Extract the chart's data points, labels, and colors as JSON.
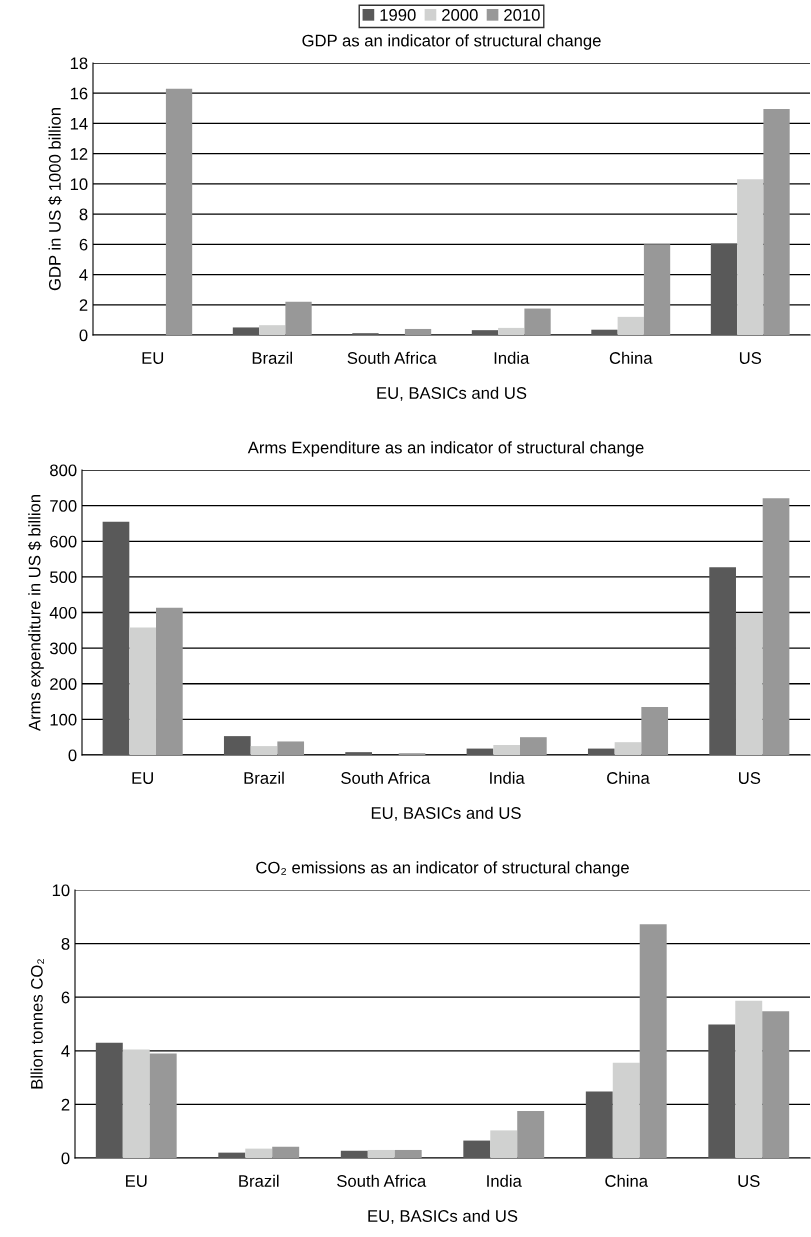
{
  "chart_data": [
    {
      "type": "bar",
      "title": "GDP as an indicator of structural change",
      "xlabel": "EU, BASICs and US",
      "ylabel": "GDP in US $ 1000 billion",
      "categories": [
        "EU",
        "Brazil",
        "South Africa",
        "India",
        "China",
        "US"
      ],
      "series": [
        {
          "name": "1990",
          "color": "#595959",
          "values": [
            null,
            0.5,
            0.12,
            0.32,
            0.35,
            6.05
          ]
        },
        {
          "name": "2000",
          "color": "#d0d1d0",
          "values": [
            null,
            0.65,
            null,
            0.47,
            1.2,
            10.3
          ]
        },
        {
          "name": "2010",
          "color": "#989898",
          "values": [
            16.3,
            2.2,
            0.4,
            1.75,
            6.0,
            14.95
          ]
        }
      ],
      "ylim": [
        0,
        18
      ],
      "yticks": [
        0,
        2,
        4,
        6,
        8,
        10,
        12,
        14,
        16,
        18
      ],
      "grid": "y",
      "legend": "top"
    },
    {
      "type": "bar",
      "title": "Arms Expenditure as an indicator of structural change",
      "xlabel": "EU, BASICs and US",
      "ylabel": "Arms expenditure in US $ billion",
      "categories": [
        "EU",
        "Brazil",
        "South Africa",
        "India",
        "China",
        "US"
      ],
      "series": [
        {
          "color": "#595959",
          "values": [
            655,
            53,
            8,
            18,
            18,
            527
          ]
        },
        {
          "color": "#d0d1d0",
          "values": [
            358,
            25,
            null,
            28,
            36,
            398
          ]
        },
        {
          "color": "#989898",
          "values": [
            413,
            38,
            5,
            50,
            135,
            721
          ]
        }
      ],
      "ylim": [
        0,
        800
      ],
      "yticks": [
        0,
        100,
        200,
        300,
        400,
        500,
        600,
        700,
        800
      ],
      "grid": "y"
    },
    {
      "type": "bar",
      "title": "CO₂ emissions as an indicator of structural change",
      "xlabel": "EU, BASICs and US",
      "ylabel": "Bllion tonnes CO₂",
      "categories": [
        "EU",
        "Brazil",
        "South Africa",
        "India",
        "China",
        "US"
      ],
      "series": [
        {
          "color": "#595959",
          "values": [
            4.3,
            0.2,
            0.27,
            0.65,
            2.48,
            4.98
          ]
        },
        {
          "color": "#d0d1d0",
          "values": [
            4.05,
            0.35,
            0.3,
            1.03,
            3.55,
            5.87
          ]
        },
        {
          "color": "#989898",
          "values": [
            3.9,
            0.42,
            0.3,
            1.75,
            8.72,
            5.48
          ]
        }
      ],
      "ylim": [
        0,
        10
      ],
      "yticks": [
        0,
        2,
        4,
        6,
        8,
        10
      ],
      "grid": "y"
    }
  ]
}
